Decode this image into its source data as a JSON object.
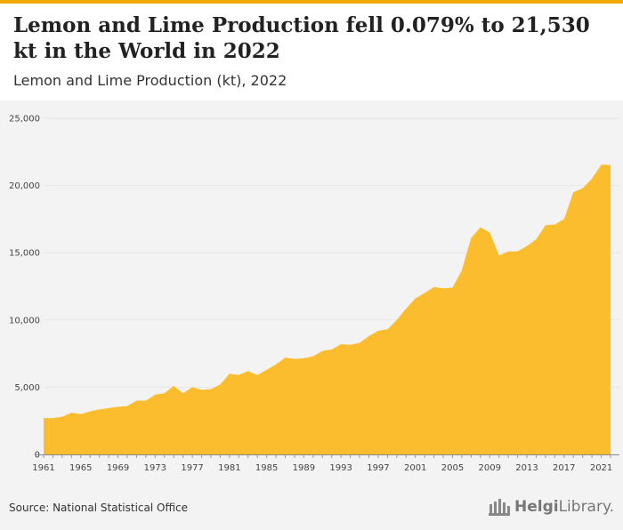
{
  "header": {
    "title": "Lemon and Lime Production fell 0.079% to 21,530 kt in the World in 2022",
    "subtitle": "Lemon and Lime Production (kt), 2022"
  },
  "footer": {
    "source": "Source: National Statistical Office",
    "brand_part1": "Helgi",
    "brand_part2": "Library."
  },
  "colors": {
    "area": "#fbbd2e",
    "top_accent": "#f6a800",
    "plot_background": "#f3f3f3",
    "grid": "#e6e6e6"
  },
  "chart_data": {
    "type": "area",
    "title": "Lemon and Lime Production (kt), 2022",
    "xlabel": "",
    "ylabel": "",
    "grid": true,
    "legend": "none",
    "ylim": [
      0,
      25000
    ],
    "yticks": [
      "0",
      "5,000",
      "10,000",
      "15,000",
      "20,000",
      "25,000"
    ],
    "xticks": [
      "1961",
      "1965",
      "1969",
      "1973",
      "1977",
      "1981",
      "1985",
      "1989",
      "1993",
      "1997",
      "2001",
      "2005",
      "2009",
      "2013",
      "2017",
      "2021"
    ],
    "x": [
      1961,
      1962,
      1963,
      1964,
      1965,
      1966,
      1967,
      1968,
      1969,
      1970,
      1971,
      1972,
      1973,
      1974,
      1975,
      1976,
      1977,
      1978,
      1979,
      1980,
      1981,
      1982,
      1983,
      1984,
      1985,
      1986,
      1987,
      1988,
      1989,
      1990,
      1991,
      1992,
      1993,
      1994,
      1995,
      1996,
      1997,
      1998,
      1999,
      2000,
      2001,
      2002,
      2003,
      2004,
      2005,
      2006,
      2007,
      2008,
      2009,
      2010,
      2011,
      2012,
      2013,
      2014,
      2015,
      2016,
      2017,
      2018,
      2019,
      2020,
      2021,
      2022
    ],
    "series": [
      {
        "values": [
          2700,
          2700,
          2800,
          3100,
          3000,
          3200,
          3350,
          3450,
          3550,
          3600,
          4000,
          4000,
          4450,
          4550,
          5100,
          4550,
          5000,
          4800,
          4850,
          5200,
          6000,
          5900,
          6200,
          5900,
          6300,
          6700,
          7200,
          7100,
          7150,
          7300,
          7700,
          7800,
          8200,
          8150,
          8300,
          8800,
          9200,
          9300,
          10000,
          10850,
          11600,
          12000,
          12450,
          12350,
          12400,
          13700,
          16100,
          16900,
          16500,
          14800,
          15100,
          15100,
          15500,
          16000,
          17050,
          17100,
          17500,
          19500,
          19800,
          20500,
          21550,
          21530
        ]
      }
    ]
  }
}
